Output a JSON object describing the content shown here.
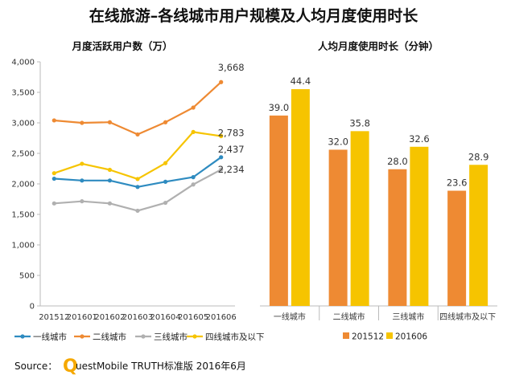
{
  "title": "在线旅游–各线城市用户规模及人均月度使用时长",
  "source": {
    "prefix": "Source：",
    "logo_letter": "Q",
    "brand_rest": "uestMobile TRUTH标准版 2016年6月"
  },
  "chart_data": [
    {
      "type": "line",
      "title": "月度活跃用户数（万）",
      "categories": [
        "201512",
        "201601",
        "201602",
        "201603",
        "201604",
        "201605",
        "201606"
      ],
      "ylim": [
        0,
        4000
      ],
      "yticks": [
        "0",
        "500",
        "1,000",
        "1,500",
        "2,000",
        "2,500",
        "3,000",
        "3,500",
        "4,000"
      ],
      "legend_position": "bottom",
      "series": [
        {
          "name": "一线城市",
          "color": "#2e8bc0",
          "values": [
            2085,
            2055,
            2055,
            1950,
            2035,
            2110,
            2437
          ],
          "end_label": "2,437"
        },
        {
          "name": "二线城市",
          "color": "#ee8a33",
          "values": [
            3040,
            3000,
            3010,
            2810,
            3010,
            3250,
            3668
          ],
          "end_label": "3,668"
        },
        {
          "name": "三线城市",
          "color": "#b0b0b0",
          "values": [
            1680,
            1715,
            1680,
            1560,
            1690,
            1990,
            2234
          ],
          "end_label": "2,234"
        },
        {
          "name": "四线城市及以下",
          "color": "#f6c400",
          "values": [
            2175,
            2330,
            2230,
            2080,
            2340,
            2850,
            2783
          ],
          "end_label": "2,783"
        }
      ]
    },
    {
      "type": "bar",
      "title": "人均月度使用时长（分钟）",
      "categories": [
        "一线城市",
        "二线城市",
        "三线城市",
        "四线城市及以下"
      ],
      "ylim": [
        0,
        50
      ],
      "legend_position": "bottom",
      "series": [
        {
          "name": "201512",
          "color": "#ee8a33",
          "values": [
            39.0,
            32.0,
            28.0,
            23.6
          ],
          "labels": [
            "39.0",
            "32.0",
            "28.0",
            "23.6"
          ]
        },
        {
          "name": "201606",
          "color": "#f6c400",
          "values": [
            44.4,
            35.8,
            32.6,
            28.9
          ],
          "labels": [
            "44.4",
            "35.8",
            "32.6",
            "28.9"
          ]
        }
      ]
    }
  ]
}
